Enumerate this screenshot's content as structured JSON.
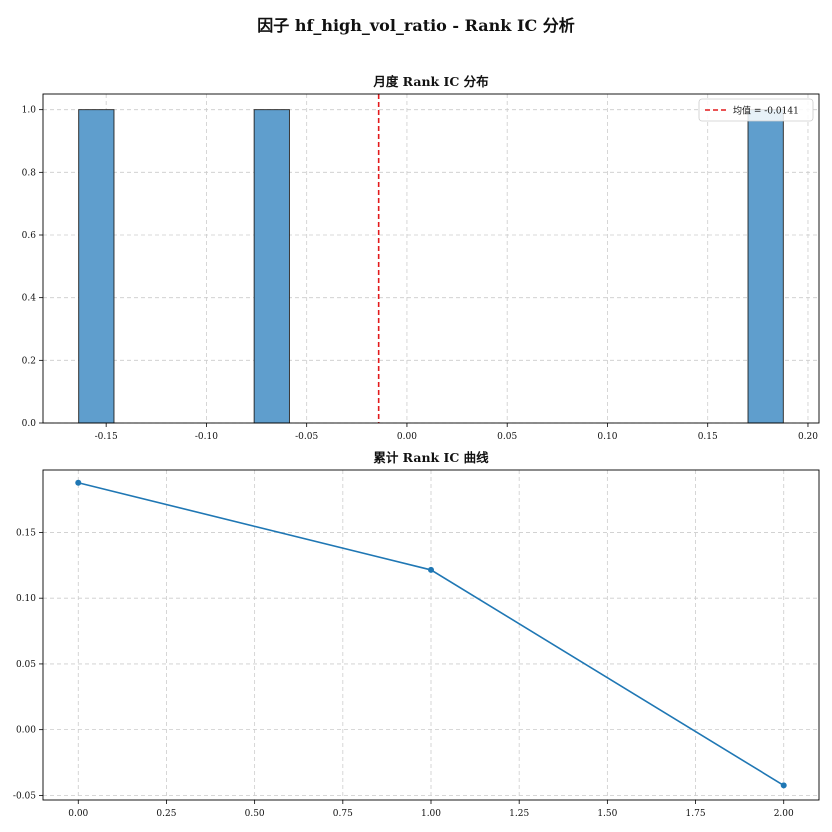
{
  "figure": {
    "suptitle": "因子 hf_high_vol_ratio - Rank IC 分析"
  },
  "chart_data": [
    {
      "type": "bar",
      "title": "月度 Rank IC 分布",
      "xlabel": "",
      "ylabel": "",
      "xlim": [
        -0.1815,
        0.2055
      ],
      "ylim": [
        0,
        1.05
      ],
      "x_ticks": [
        -0.15,
        -0.1,
        -0.05,
        0.0,
        0.05,
        0.1,
        0.15,
        0.2
      ],
      "x_tick_labels": [
        "-0.15",
        "-0.10",
        "-0.05",
        "0.00",
        "0.05",
        "0.10",
        "0.15",
        "0.20"
      ],
      "y_ticks": [
        0.0,
        0.2,
        0.4,
        0.6,
        0.8,
        1.0
      ],
      "y_tick_labels": [
        "0.0",
        "0.2",
        "0.4",
        "0.6",
        "0.8",
        "1.0"
      ],
      "bins": [
        {
          "x0": -0.1637,
          "x1": -0.1461,
          "count": 1
        },
        {
          "x0": -0.0762,
          "x1": -0.0586,
          "count": 1
        },
        {
          "x0": 0.1701,
          "x1": 0.1877,
          "count": 1
        }
      ],
      "bar_color": "#5f9ecd",
      "mean_line": {
        "value": -0.0141,
        "color": "#e31a1c",
        "label": "均值 = -0.0141"
      },
      "legend_position": "top-right",
      "grid": true
    },
    {
      "type": "line",
      "title": "累计 Rank IC 曲线",
      "xlabel": "",
      "ylabel": "",
      "xlim": [
        -0.1,
        2.1
      ],
      "ylim": [
        -0.0535,
        0.1975
      ],
      "x_ticks": [
        0.0,
        0.25,
        0.5,
        0.75,
        1.0,
        1.25,
        1.5,
        1.75,
        2.0
      ],
      "x_tick_labels": [
        "0.00",
        "0.25",
        "0.50",
        "0.75",
        "1.00",
        "1.25",
        "1.50",
        "1.75",
        "2.00"
      ],
      "y_ticks": [
        -0.05,
        0.0,
        0.05,
        0.1,
        0.15
      ],
      "y_tick_labels": [
        "-0.05",
        "0.00",
        "0.05",
        "0.10",
        "0.15"
      ],
      "series": [
        {
          "x": [
            0,
            1,
            2
          ],
          "values": [
            0.1878,
            0.1215,
            -0.0424
          ],
          "color": "#1f77b4"
        }
      ],
      "grid": true
    }
  ]
}
